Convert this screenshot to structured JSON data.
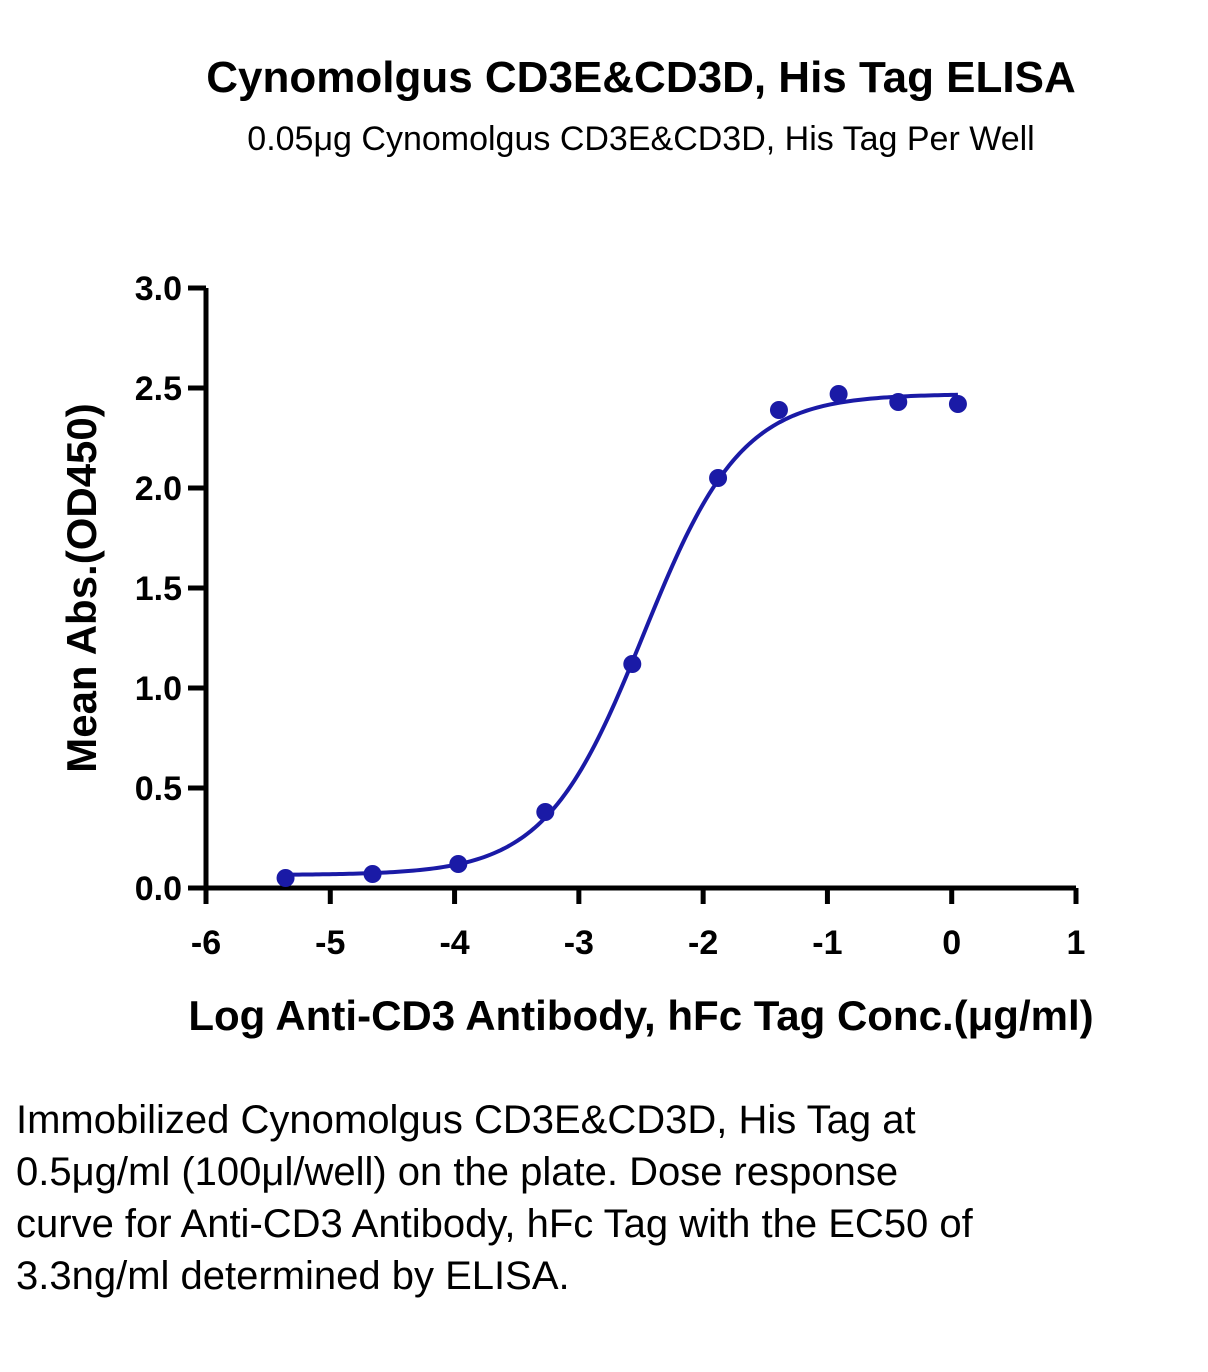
{
  "chart_data": {
    "type": "scatter",
    "title": "Cynomolgus CD3E&CD3D, His Tag ELISA",
    "subtitle": "0.05μg Cynomolgus CD3E&CD3D, His Tag Per Well",
    "xlabel": "Log Anti-CD3 Antibody, hFc Tag Conc.(μg/ml)",
    "ylabel": "Mean Abs.(OD450)",
    "xlim": [
      -6,
      1
    ],
    "ylim": [
      0,
      3.0
    ],
    "x_ticks": [
      "-6",
      "-5",
      "-4",
      "-3",
      "-2",
      "-1",
      "0",
      "1"
    ],
    "y_ticks": [
      "0.0",
      "0.5",
      "1.0",
      "1.5",
      "2.0",
      "2.5",
      "3.0"
    ],
    "grid": false,
    "series": [
      {
        "color": "#1a1aa6",
        "x": [
          -5.36,
          -4.66,
          -3.97,
          -3.27,
          -2.57,
          -1.88,
          -1.39,
          -0.91,
          -0.43,
          0.05
        ],
        "y": [
          0.05,
          0.07,
          0.12,
          0.38,
          1.12,
          2.05,
          2.39,
          2.47,
          2.43,
          2.42
        ]
      }
    ],
    "fit_curve": {
      "bottom": 0.065,
      "top": 2.47,
      "log_ec50": -2.48,
      "hill_slope": 1.1
    }
  },
  "caption": "Immobilized Cynomolgus CD3E&CD3D, His Tag at 0.5μg/ml (100μl/well) on the plate. Dose response curve for Anti-CD3 Antibody, hFc Tag with the EC50 of 3.3ng/ml determined by ELISA."
}
